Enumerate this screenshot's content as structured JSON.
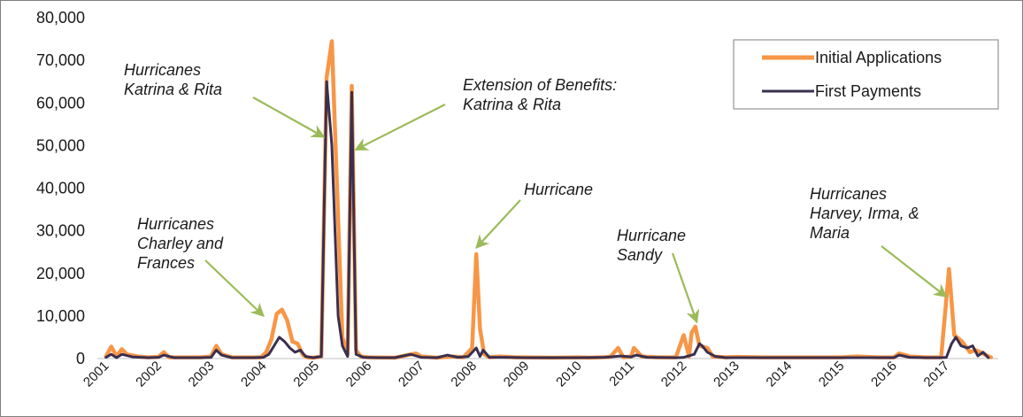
{
  "chart_data": {
    "type": "line",
    "title": "",
    "xlabel": "",
    "ylabel": "",
    "ylim": [
      0,
      80000
    ],
    "xlim": [
      2001.0,
      2017.9
    ],
    "y_ticks": [
      0,
      10000,
      20000,
      30000,
      40000,
      50000,
      60000,
      70000,
      80000
    ],
    "y_tick_labels": [
      "0",
      "10,000",
      "20,000",
      "30,000",
      "40,000",
      "50,000",
      "60,000",
      "70,000",
      "80,000"
    ],
    "x_ticks": [
      2001,
      2002,
      2003,
      2004,
      2005,
      2006,
      2007,
      2008,
      2009,
      2010,
      2011,
      2012,
      2013,
      2014,
      2015,
      2016,
      2017
    ],
    "x_tick_labels": [
      "2001",
      "2002",
      "2003",
      "2004",
      "2005",
      "2006",
      "2007",
      "2008",
      "2009",
      "2010",
      "2011",
      "2012",
      "2013",
      "2014",
      "2015",
      "2016",
      "2017"
    ],
    "grid": false,
    "legend": "top-right",
    "series": [
      {
        "name": "Initial Applications",
        "color": "#f79646",
        "points": [
          [
            2001.0,
            500
          ],
          [
            2001.1,
            2800
          ],
          [
            2001.2,
            600
          ],
          [
            2001.3,
            2200
          ],
          [
            2001.4,
            1000
          ],
          [
            2001.6,
            500
          ],
          [
            2001.8,
            300
          ],
          [
            2002.0,
            400
          ],
          [
            2002.1,
            1500
          ],
          [
            2002.2,
            300
          ],
          [
            2002.5,
            300
          ],
          [
            2002.8,
            300
          ],
          [
            2003.0,
            500
          ],
          [
            2003.1,
            3000
          ],
          [
            2003.2,
            1000
          ],
          [
            2003.4,
            300
          ],
          [
            2003.7,
            300
          ],
          [
            2003.95,
            300
          ],
          [
            2004.05,
            1500
          ],
          [
            2004.15,
            4500
          ],
          [
            2004.25,
            10500
          ],
          [
            2004.35,
            11500
          ],
          [
            2004.45,
            9000
          ],
          [
            2004.55,
            4000
          ],
          [
            2004.65,
            3500
          ],
          [
            2004.75,
            800
          ],
          [
            2004.85,
            200
          ],
          [
            2004.95,
            200
          ],
          [
            2005.1,
            500
          ],
          [
            2005.2,
            66000
          ],
          [
            2005.3,
            74500
          ],
          [
            2005.4,
            40000
          ],
          [
            2005.5,
            5000
          ],
          [
            2005.6,
            1000
          ],
          [
            2005.68,
            64000
          ],
          [
            2005.76,
            2000
          ],
          [
            2005.85,
            500
          ],
          [
            2006.0,
            300
          ],
          [
            2006.5,
            200
          ],
          [
            2006.9,
            1200
          ],
          [
            2007.0,
            500
          ],
          [
            2007.3,
            200
          ],
          [
            2007.6,
            500
          ],
          [
            2007.8,
            300
          ],
          [
            2007.9,
            1500
          ],
          [
            2007.97,
            2500
          ],
          [
            2008.05,
            24500
          ],
          [
            2008.12,
            7000
          ],
          [
            2008.2,
            1000
          ],
          [
            2008.3,
            300
          ],
          [
            2008.5,
            500
          ],
          [
            2008.8,
            300
          ],
          [
            2009.0,
            300
          ],
          [
            2009.5,
            200
          ],
          [
            2010.0,
            300
          ],
          [
            2010.2,
            200
          ],
          [
            2010.4,
            300
          ],
          [
            2010.6,
            400
          ],
          [
            2010.75,
            2500
          ],
          [
            2010.85,
            300
          ],
          [
            2011.0,
            500
          ],
          [
            2011.05,
            2500
          ],
          [
            2011.2,
            500
          ],
          [
            2011.5,
            300
          ],
          [
            2011.85,
            300
          ],
          [
            2012.0,
            5500
          ],
          [
            2012.1,
            500
          ],
          [
            2012.15,
            6000
          ],
          [
            2012.22,
            7500
          ],
          [
            2012.3,
            3000
          ],
          [
            2012.45,
            2500
          ],
          [
            2012.55,
            500
          ],
          [
            2012.8,
            300
          ],
          [
            2013.0,
            400
          ],
          [
            2013.5,
            300
          ],
          [
            2014.0,
            300
          ],
          [
            2014.5,
            300
          ],
          [
            2015.0,
            300
          ],
          [
            2015.3,
            500
          ],
          [
            2015.7,
            300
          ],
          [
            2016.0,
            300
          ],
          [
            2016.1,
            1200
          ],
          [
            2016.3,
            500
          ],
          [
            2016.6,
            300
          ],
          [
            2016.9,
            300
          ],
          [
            2017.05,
            21000
          ],
          [
            2017.15,
            5500
          ],
          [
            2017.3,
            4000
          ],
          [
            2017.45,
            1500
          ],
          [
            2017.55,
            2000
          ],
          [
            2017.65,
            1500
          ],
          [
            2017.75,
            800
          ],
          [
            2017.85,
            300
          ]
        ]
      },
      {
        "name": "First Payments",
        "color": "#3b2f4f",
        "points": [
          [
            2001.0,
            300
          ],
          [
            2001.1,
            1000
          ],
          [
            2001.2,
            200
          ],
          [
            2001.3,
            1000
          ],
          [
            2001.5,
            400
          ],
          [
            2001.8,
            200
          ],
          [
            2002.0,
            300
          ],
          [
            2002.1,
            800
          ],
          [
            2002.3,
            200
          ],
          [
            2002.8,
            200
          ],
          [
            2003.0,
            300
          ],
          [
            2003.1,
            2000
          ],
          [
            2003.2,
            800
          ],
          [
            2003.4,
            200
          ],
          [
            2003.8,
            200
          ],
          [
            2004.0,
            300
          ],
          [
            2004.1,
            1000
          ],
          [
            2004.2,
            3000
          ],
          [
            2004.3,
            5000
          ],
          [
            2004.4,
            4000
          ],
          [
            2004.5,
            2500
          ],
          [
            2004.6,
            1500
          ],
          [
            2004.7,
            2000
          ],
          [
            2004.8,
            500
          ],
          [
            2004.95,
            200
          ],
          [
            2005.1,
            500
          ],
          [
            2005.2,
            65000
          ],
          [
            2005.3,
            50000
          ],
          [
            2005.42,
            10000
          ],
          [
            2005.5,
            3000
          ],
          [
            2005.6,
            500
          ],
          [
            2005.68,
            62500
          ],
          [
            2005.76,
            1000
          ],
          [
            2005.9,
            300
          ],
          [
            2006.2,
            200
          ],
          [
            2006.5,
            200
          ],
          [
            2006.8,
            1000
          ],
          [
            2007.0,
            300
          ],
          [
            2007.3,
            200
          ],
          [
            2007.5,
            800
          ],
          [
            2007.7,
            300
          ],
          [
            2007.9,
            500
          ],
          [
            2008.05,
            2500
          ],
          [
            2008.12,
            500
          ],
          [
            2008.18,
            2000
          ],
          [
            2008.3,
            300
          ],
          [
            2008.6,
            300
          ],
          [
            2009.0,
            200
          ],
          [
            2009.5,
            200
          ],
          [
            2010.0,
            200
          ],
          [
            2010.5,
            300
          ],
          [
            2010.8,
            600
          ],
          [
            2011.0,
            400
          ],
          [
            2011.1,
            800
          ],
          [
            2011.3,
            300
          ],
          [
            2011.9,
            200
          ],
          [
            2012.0,
            300
          ],
          [
            2012.2,
            1000
          ],
          [
            2012.3,
            3500
          ],
          [
            2012.35,
            3000
          ],
          [
            2012.45,
            1500
          ],
          [
            2012.6,
            500
          ],
          [
            2012.8,
            200
          ],
          [
            2013.0,
            200
          ],
          [
            2014.0,
            200
          ],
          [
            2015.0,
            200
          ],
          [
            2015.5,
            200
          ],
          [
            2016.0,
            200
          ],
          [
            2016.1,
            800
          ],
          [
            2016.3,
            300
          ],
          [
            2016.6,
            200
          ],
          [
            2016.9,
            200
          ],
          [
            2017.0,
            300
          ],
          [
            2017.1,
            3500
          ],
          [
            2017.18,
            5000
          ],
          [
            2017.28,
            3000
          ],
          [
            2017.4,
            2500
          ],
          [
            2017.5,
            3000
          ],
          [
            2017.6,
            600
          ],
          [
            2017.7,
            1500
          ],
          [
            2017.8,
            200
          ]
        ]
      }
    ],
    "annotations": [
      {
        "lines": [
          "Hurricanes",
          "Katrina & Rita"
        ],
        "target": [
          2005.15,
          52000
        ]
      },
      {
        "lines": [
          "Extension of Benefits:",
          "Katrina & Rita"
        ],
        "target": [
          2005.75,
          49000
        ]
      },
      {
        "lines": [
          "Hurricanes",
          "Charley and",
          "Frances"
        ],
        "target": [
          2004.0,
          10000
        ]
      },
      {
        "lines": [
          "Hurricane"
        ],
        "target": [
          2008.05,
          26000
        ]
      },
      {
        "lines": [
          "Hurricane",
          "Sandy"
        ],
        "target": [
          2012.25,
          8500
        ]
      },
      {
        "lines": [
          "Hurricanes",
          "Harvey, Irma, &",
          "Maria"
        ],
        "target": [
          2017.0,
          14500
        ]
      }
    ]
  }
}
